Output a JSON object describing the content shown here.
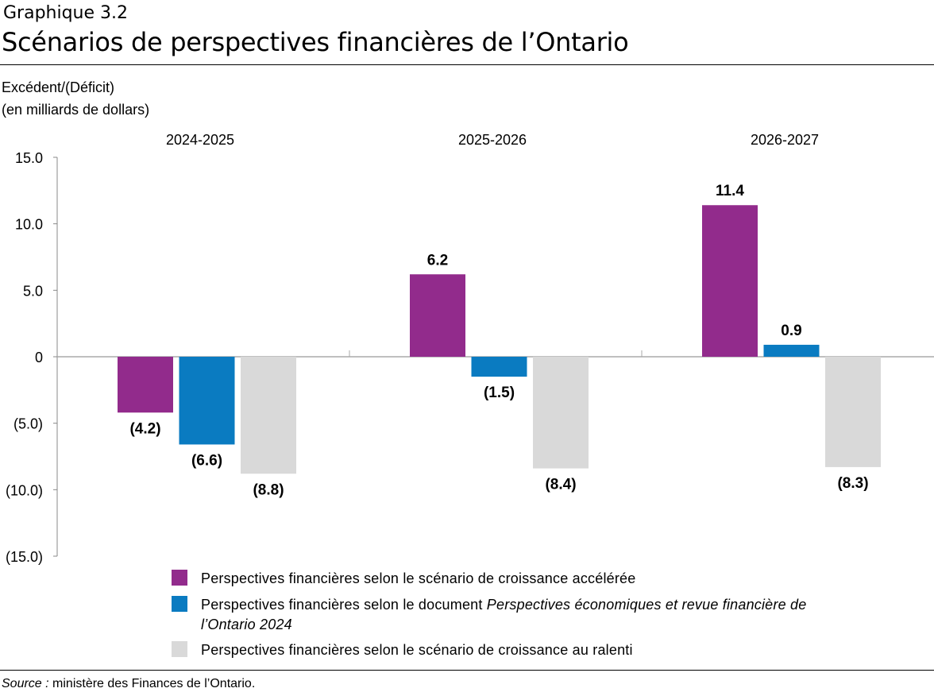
{
  "header": {
    "supertitle": "Graphique 3.2",
    "title": "Scénarios de perspectives financières de l’Ontario"
  },
  "chart_data": {
    "type": "bar",
    "title": "Scénarios de perspectives financières de l’Ontario",
    "ylabel": [
      "Excédent/(Déficit)",
      "(en milliards de dollars)"
    ],
    "categories": [
      "2024-2025",
      "2025-2026",
      "2026-2027"
    ],
    "ylim": [
      -15,
      15
    ],
    "yticks": [
      15,
      10,
      5,
      0,
      -5,
      -10,
      -15
    ],
    "ytick_labels": [
      "15.0",
      "10.0",
      "5.0",
      "0",
      "(5.0)",
      "(10.0)",
      "(15.0)"
    ],
    "grid": false,
    "legend_position": "bottom",
    "series": [
      {
        "name": "Perspectives financières selon le scénario de croissance accélérée",
        "color": "#922B8C",
        "values": [
          -4.2,
          6.2,
          11.4
        ],
        "labels": [
          "(4.2)",
          "6.2",
          "11.4"
        ]
      },
      {
        "name": "Perspectives financières selon le document Perspectives économiques et revue financière de l’Ontario 2024",
        "color": "#0A7BC1",
        "values": [
          -6.6,
          -1.5,
          0.9
        ],
        "labels": [
          "(6.6)",
          "(1.5)",
          "0.9"
        ]
      },
      {
        "name": "Perspectives financières selon le scénario de croissance au ralenti",
        "color": "#D9D9D9",
        "values": [
          -8.8,
          -8.4,
          -8.3
        ],
        "labels": [
          "(8.8)",
          "(8.4)",
          "(8.3)"
        ]
      }
    ]
  },
  "legend": [
    {
      "text": "Perspectives financières selon le scénario de croissance accélérée",
      "italic": ""
    },
    {
      "text": "Perspectives financières selon le document ",
      "italic": "Perspectives économiques et revue financière de l’Ontario 2024"
    },
    {
      "text": "Perspectives financières selon le scénario de croissance au ralenti",
      "italic": ""
    }
  ],
  "source": {
    "label": "Source :",
    "text": " ministère des Finances de l’Ontario."
  }
}
